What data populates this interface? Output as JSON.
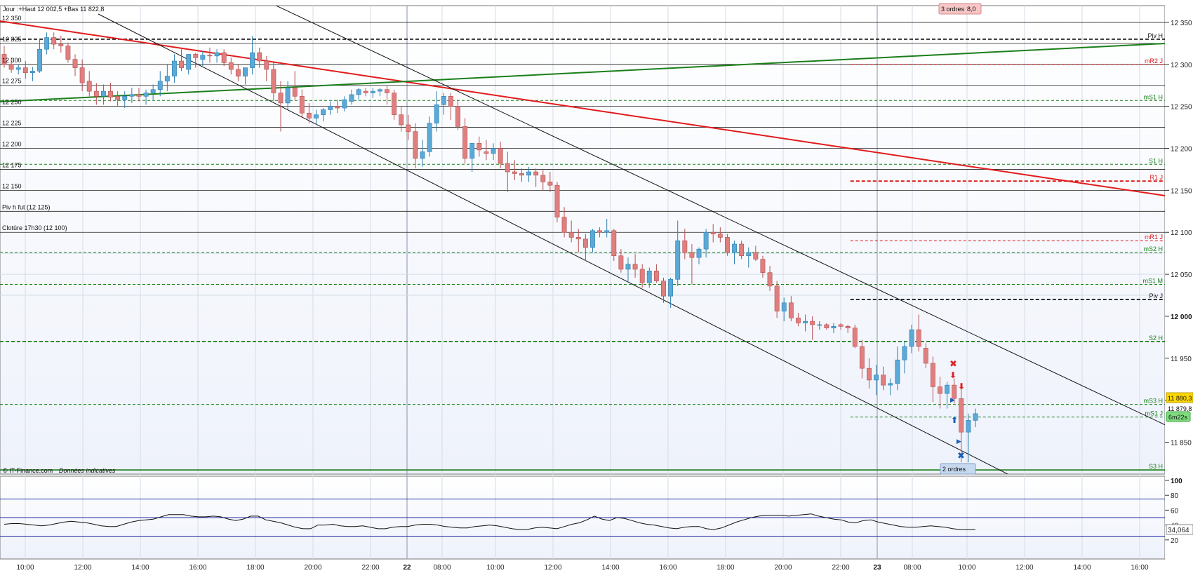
{
  "header": {
    "info": "Jour :+Haut 12 002,5 +Bas 11 822,8",
    "orders_top": "3 ordres",
    "orders_top_value": "8,0",
    "orders_bottom": "2 ordres",
    "credit": "© IT-Finance.com",
    "credit_note": "Données indicatives"
  },
  "price_readout": {
    "last": "11 880,3",
    "second": "11 879,8",
    "timer": "6m22s"
  },
  "colors": {
    "up": "#5aa9d6",
    "down": "#e07f7f",
    "red_trend": "#e11b1b",
    "green_trend": "#1a7f1a",
    "red_level": "#d11",
    "green_level": "#1a7f1a",
    "price_badge": "#ffd700",
    "timer_badge": "#7fdc7f",
    "rsi_line": "#111111",
    "rsi_band": "#1f2a9a"
  },
  "chart_data": [
    {
      "type": "candlestick",
      "y_ticks": [
        "12 350",
        "12 300",
        "12 250",
        "12 200",
        "12 150",
        "12 100",
        "12 050",
        "12 000",
        "11 950",
        "11 900",
        "11 850"
      ],
      "y_tick_values": [
        12350,
        12300,
        12250,
        12200,
        12150,
        12100,
        12050,
        12000,
        11950,
        11900,
        11850
      ],
      "bold_tick": "12 000",
      "ylim": [
        11812,
        12370
      ],
      "x_ticks": [
        "10:00",
        "12:00",
        "14:00",
        "16:00",
        "18:00",
        "20:00",
        "22:00",
        "22",
        "08:00",
        "10:00",
        "12:00",
        "14:00",
        "16:00",
        "18:00",
        "20:00",
        "22:00",
        "23",
        "08:00",
        "10:00",
        "12:00",
        "14:00",
        "16:00"
      ],
      "day_ticks": [
        "22",
        "23"
      ],
      "left_labels": [
        {
          "text": "12 350",
          "value": 12350
        },
        {
          "text": "12 325",
          "value": 12325
        },
        {
          "text": "12 300",
          "value": 12300
        },
        {
          "text": "12 275",
          "value": 12275
        },
        {
          "text": "12 250",
          "value": 12250
        },
        {
          "text": "12 225",
          "value": 12225
        },
        {
          "text": "12 200",
          "value": 12200
        },
        {
          "text": "12 175",
          "value": 12175
        },
        {
          "text": "12 150",
          "value": 12150
        },
        {
          "text": "Piv h fut (12 125)",
          "value": 12125
        },
        {
          "text": "Clotûre 17h30 (12 100)",
          "value": 12100
        }
      ],
      "levels": [
        {
          "label": "Piv H",
          "value": 12330,
          "color": "#111111",
          "style": "dash-bold",
          "start": 0
        },
        {
          "label": "mR2 J",
          "value": 12300,
          "color": "#d11",
          "style": "dash",
          "start": 0.73
        },
        {
          "label": "mS1 H",
          "value": 12257,
          "color": "#1a7f1a",
          "style": "dash",
          "start": 0
        },
        {
          "label": "S1 H",
          "value": 12181,
          "color": "#1a7f1a",
          "style": "dash",
          "start": 0
        },
        {
          "label": "R1 J",
          "value": 12161,
          "color": "#d11",
          "style": "dash-bold",
          "start": 0.73
        },
        {
          "label": "mR1 J",
          "value": 12090,
          "color": "#d11",
          "style": "dash",
          "start": 0.73
        },
        {
          "label": "mS2 H",
          "value": 12076,
          "color": "#1a7f1a",
          "style": "dash",
          "start": 0
        },
        {
          "label": "mS1 M",
          "value": 12038,
          "color": "#1a7f1a",
          "style": "dash",
          "start": 0
        },
        {
          "label": "Piv J",
          "value": 12020,
          "color": "#111111",
          "style": "dash-bold",
          "start": 0.73
        },
        {
          "label": "S2 H",
          "value": 11970,
          "color": "#1a7f1a",
          "style": "dash-bold",
          "start": 0
        },
        {
          "label": "mS3 H",
          "value": 11895,
          "color": "#1a7f1a",
          "style": "dash",
          "start": 0
        },
        {
          "label": "mS1 J",
          "value": 11880,
          "color": "#1a7f1a",
          "style": "dash",
          "start": 0.73
        },
        {
          "label": "S3 H",
          "value": 11817,
          "color": "#1a7f1a",
          "style": "solid",
          "start": 0
        }
      ],
      "candles": [
        [
          12312,
          12322,
          12296,
          12300
        ],
        [
          12300,
          12308,
          12290,
          12294
        ],
        [
          12294,
          12300,
          12288,
          12296
        ],
        [
          12296,
          12304,
          12283,
          12290
        ],
        [
          12290,
          12297,
          12280,
          12292
        ],
        [
          12292,
          12330,
          12290,
          12318
        ],
        [
          12318,
          12338,
          12312,
          12332
        ],
        [
          12332,
          12338,
          12318,
          12324
        ],
        [
          12324,
          12334,
          12314,
          12322
        ],
        [
          12322,
          12326,
          12302,
          12306
        ],
        [
          12306,
          12312,
          12286,
          12296
        ],
        [
          12296,
          12306,
          12268,
          12278
        ],
        [
          12280,
          12292,
          12262,
          12268
        ],
        [
          12268,
          12278,
          12252,
          12262
        ],
        [
          12262,
          12276,
          12252,
          12268
        ],
        [
          12268,
          12278,
          12256,
          12261
        ],
        [
          12262,
          12268,
          12250,
          12258
        ],
        [
          12258,
          12268,
          12248,
          12262
        ],
        [
          12262,
          12272,
          12254,
          12264
        ],
        [
          12264,
          12272,
          12256,
          12262
        ],
        [
          12262,
          12270,
          12252,
          12266
        ],
        [
          12266,
          12276,
          12258,
          12270
        ],
        [
          12270,
          12292,
          12262,
          12280
        ],
        [
          12280,
          12300,
          12268,
          12286
        ],
        [
          12286,
          12312,
          12278,
          12304
        ],
        [
          12304,
          12318,
          12292,
          12296
        ],
        [
          12294,
          12312,
          12288,
          12312
        ],
        [
          12312,
          12314,
          12296,
          12308
        ],
        [
          12306,
          12316,
          12298,
          12311
        ],
        [
          12311,
          12320,
          12302,
          12310
        ],
        [
          12310,
          12318,
          12302,
          12314
        ],
        [
          12314,
          12318,
          12298,
          12302
        ],
        [
          12302,
          12308,
          12288,
          12294
        ],
        [
          12294,
          12300,
          12280,
          12286
        ],
        [
          12286,
          12294,
          12276,
          12296
        ],
        [
          12296,
          12334,
          12288,
          12314
        ],
        [
          12314,
          12320,
          12296,
          12304
        ],
        [
          12304,
          12310,
          12280,
          12294
        ],
        [
          12294,
          12302,
          12256,
          12266
        ],
        [
          12266,
          12280,
          12220,
          12254
        ],
        [
          12254,
          12280,
          12246,
          12272
        ],
        [
          12272,
          12292,
          12258,
          12262
        ],
        [
          12262,
          12270,
          12236,
          12242
        ],
        [
          12242,
          12254,
          12230,
          12236
        ],
        [
          12236,
          12246,
          12228,
          12240
        ],
        [
          12240,
          12248,
          12232,
          12246
        ],
        [
          12246,
          12256,
          12240,
          12250
        ],
        [
          12250,
          12258,
          12242,
          12248
        ],
        [
          12248,
          12262,
          12244,
          12258
        ],
        [
          12256,
          12270,
          12252,
          12264
        ],
        [
          12264,
          12272,
          12258,
          12270
        ],
        [
          12268,
          12272,
          12262,
          12266
        ],
        [
          12266,
          12272,
          12260,
          12268
        ],
        [
          12268,
          12272,
          12262,
          12270
        ],
        [
          12270,
          12274,
          12252,
          12266
        ],
        [
          12266,
          12270,
          12234,
          12240
        ],
        [
          12240,
          12250,
          12220,
          12228
        ],
        [
          12228,
          12240,
          12210,
          12220
        ],
        [
          12220,
          12230,
          12176,
          12188
        ],
        [
          12188,
          12210,
          12178,
          12196
        ],
        [
          12196,
          12238,
          12190,
          12230
        ],
        [
          12230,
          12268,
          12220,
          12252
        ],
        [
          12252,
          12266,
          12240,
          12262
        ],
        [
          12262,
          12266,
          12234,
          12250
        ],
        [
          12250,
          12258,
          12222,
          12226
        ],
        [
          12226,
          12236,
          12182,
          12188
        ],
        [
          12188,
          12206,
          12172,
          12206
        ],
        [
          12206,
          12214,
          12190,
          12198
        ],
        [
          12196,
          12210,
          12186,
          12194
        ],
        [
          12194,
          12206,
          12186,
          12200
        ],
        [
          12200,
          12208,
          12176,
          12182
        ],
        [
          12182,
          12196,
          12148,
          12172
        ],
        [
          12172,
          12186,
          12162,
          12170
        ],
        [
          12170,
          12176,
          12160,
          12168
        ],
        [
          12168,
          12178,
          12160,
          12172
        ],
        [
          12172,
          12176,
          12154,
          12168
        ],
        [
          12168,
          12174,
          12150,
          12160
        ],
        [
          12160,
          12172,
          12148,
          12156
        ],
        [
          12156,
          12160,
          12112,
          12118
        ],
        [
          12118,
          12130,
          12094,
          12100
        ],
        [
          12100,
          12114,
          12088,
          12094
        ],
        [
          12094,
          12104,
          12076,
          12092
        ],
        [
          12092,
          12098,
          12066,
          12082
        ],
        [
          12082,
          12104,
          12076,
          12102
        ],
        [
          12102,
          12106,
          12094,
          12100
        ],
        [
          12100,
          12116,
          12094,
          12102
        ],
        [
          12102,
          12104,
          12066,
          12072
        ],
        [
          12072,
          12080,
          12052,
          12056
        ],
        [
          12056,
          12070,
          12040,
          12062
        ],
        [
          12062,
          12074,
          12046,
          12056
        ],
        [
          12056,
          12062,
          12034,
          12040
        ],
        [
          12040,
          12058,
          12034,
          12054
        ],
        [
          12054,
          12062,
          12040,
          12042
        ],
        [
          12042,
          12046,
          12016,
          12024
        ],
        [
          12024,
          12046,
          12010,
          12044
        ],
        [
          12044,
          12114,
          12036,
          12090
        ],
        [
          12090,
          12104,
          12068,
          12076
        ],
        [
          12076,
          12086,
          12038,
          12070
        ],
        [
          12070,
          12082,
          12062,
          12080
        ],
        [
          12080,
          12104,
          12070,
          12100
        ],
        [
          12100,
          12110,
          12088,
          12098
        ],
        [
          12098,
          12106,
          12088,
          12094
        ],
        [
          12094,
          12098,
          12072,
          12076
        ],
        [
          12076,
          12090,
          12062,
          12086
        ],
        [
          12086,
          12090,
          12068,
          12072
        ],
        [
          12072,
          12082,
          12058,
          12076
        ],
        [
          12076,
          12084,
          12066,
          12068
        ],
        [
          12068,
          12072,
          12046,
          12052
        ],
        [
          12052,
          12060,
          12030,
          12036
        ],
        [
          12036,
          12042,
          11998,
          12006
        ],
        [
          12006,
          12022,
          11994,
          12016
        ],
        [
          12016,
          12024,
          11994,
          11998
        ],
        [
          11998,
          12004,
          11988,
          11992
        ],
        [
          11992,
          12002,
          11982,
          11994
        ],
        [
          11994,
          12000,
          11972,
          11990
        ],
        [
          11990,
          11994,
          11984,
          11990
        ],
        [
          11990,
          11992,
          11984,
          11986
        ],
        [
          11986,
          11992,
          11980,
          11988
        ],
        [
          11990,
          11992,
          11984,
          11988
        ],
        [
          11988,
          11990,
          11980,
          11986
        ],
        [
          11986,
          11990,
          11962,
          11964
        ],
        [
          11964,
          11972,
          11926,
          11938
        ],
        [
          11938,
          11950,
          11914,
          11924
        ],
        [
          11924,
          11942,
          11906,
          11930
        ],
        [
          11930,
          11940,
          11912,
          11918
        ],
        [
          11918,
          11926,
          11906,
          11920
        ],
        [
          11920,
          11964,
          11912,
          11948
        ],
        [
          11948,
          11970,
          11932,
          11964
        ],
        [
          11964,
          11990,
          11956,
          11984
        ],
        [
          11984,
          12002,
          11958,
          11964
        ],
        [
          11962,
          11968,
          11938,
          11944
        ],
        [
          11944,
          11952,
          11898,
          11916
        ],
        [
          11916,
          11928,
          11890,
          11908
        ],
        [
          11908,
          11922,
          11890,
          11918
        ],
        [
          11918,
          11926,
          11896,
          11902
        ],
        [
          11902,
          11916,
          11826,
          11862
        ],
        [
          11862,
          11884,
          11826,
          11876
        ],
        [
          11876,
          11890,
          11868,
          11884
        ]
      ]
    },
    {
      "type": "line",
      "y_ticks": [
        "100",
        "80",
        "60",
        "40",
        "20"
      ],
      "y_tick_values": [
        100,
        80,
        60,
        40,
        20
      ],
      "ylim": [
        0,
        100
      ],
      "bands": [
        75,
        50,
        25
      ],
      "last_label": "34,064",
      "values": [
        41,
        42,
        42,
        41,
        40,
        39,
        40,
        42,
        44,
        45,
        44,
        43,
        41,
        39,
        38,
        38,
        41,
        44,
        46,
        47,
        48,
        51,
        54,
        54,
        54,
        52,
        51,
        51,
        52,
        51,
        48,
        46,
        48,
        52,
        52,
        47,
        45,
        43,
        40,
        37,
        35,
        35,
        40,
        40,
        41,
        39,
        38,
        38,
        39,
        37,
        35,
        35,
        37,
        38,
        38,
        40,
        41,
        41,
        40,
        38,
        37,
        36,
        36,
        38,
        39,
        40,
        39,
        37,
        35,
        34,
        34,
        36,
        37,
        36,
        35,
        38,
        41,
        43,
        47,
        52,
        48,
        46,
        50,
        49,
        46,
        43,
        41,
        40,
        38,
        36,
        35,
        37,
        38,
        38,
        35,
        34,
        36,
        40,
        44,
        47,
        50,
        52,
        53,
        53,
        53,
        52,
        53,
        54,
        55,
        52,
        50,
        48,
        47,
        44,
        43,
        46,
        47,
        44,
        42,
        40,
        38,
        37,
        37,
        38,
        39,
        38,
        37,
        35,
        34,
        34,
        34
      ]
    }
  ]
}
